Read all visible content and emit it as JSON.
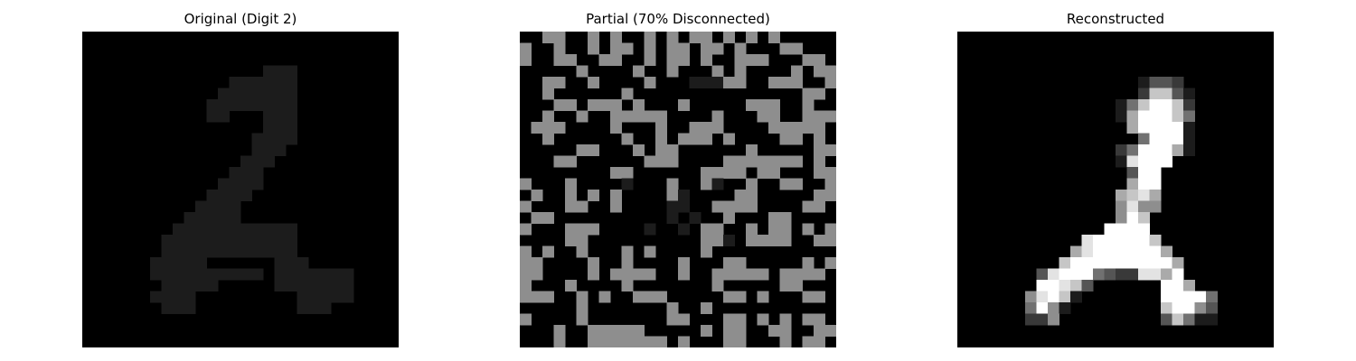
{
  "panels": [
    {
      "title": "Original (Digit 2)",
      "rows": [
        "0000000000000000000000000000",
        "0000000000000000000000000000",
        "0000000000000000000000000000",
        "0000000000000000111000000000",
        "0000000000000111111000000000",
        "0000000000001111111000000000",
        "0000000000011111111000000000",
        "0000000000011000111000000000",
        "0000000000000000111000000000",
        "0000000000000001111000000000",
        "0000000000000001110000000000",
        "0000000000000011100000000000",
        "0000000000000111000000000000",
        "0000000000001111000000000000",
        "0000000000011110000000000000",
        "0000000000111100000000000000",
        "0000000001111100000000000000",
        "0000000011111111111000000000",
        "0000000111111111111000000000",
        "0000000111111111111000000000",
        "0000001111100000011100000000",
        "0000001111111111011111110000",
        "0000000111110000011111110000",
        "0000001111000000000111110000",
        "0000000111000000000111000000",
        "0000000000000000000000000000",
        "0000000000000000000000000000",
        "0000000000000000000000000000"
      ]
    },
    {
      "title": "Partial (70% Disconnected)",
      "rows": [
        "0055005050050505505050500000",
        "5005005055050550550500055000",
        "5005500550050550500555000550",
        "0000050000500500050500005055",
        "0055005000050001115500555005",
        "0050000005000000000000000550",
        "0005505550500050000055500500",
        "0050050055555000050005500555",
        "0555000050005005550000555550",
        "0050000005005055505000055050",
        "0000055000505500000050000055",
        "0005500000055500005555555050",
        "0000000055000000555505500055",
        "5000500001000500510050055005",
        "0500505050000510000550000055",
        "5000550050000110055550000550",
        "0550000000000101005000550000",
        "5000555000010010550050550505",
        "0000550000000000551055550055",
        "5050050005050000500000000000",
        "5500005005000050005500000505",
        "5500005055550050055555055550",
        "5000500005000000050000055000",
        "5550050500555000005505000550",
        "0000050000000500500000000000",
        "5000050000000550005505050550",
        "0005005555500000505500550055",
        "0005005555555050005500050550"
      ]
    },
    {
      "title": "Reconstructed",
      "rows": [
        "0000000000000000000000000000",
        "0000000000000000000000000000",
        "0000000000000000000000000000",
        "0000000000000000000000000000",
        "0000000000000000133200000000",
        "0000000000000000277310000000",
        "0000000000000014799720000000",
        "0000000000000016999740000000",
        "0000000000000006999910000000",
        "0000000000000000499910000000",
        "0000000000000024999610000000",
        "0000000000000018999000000000",
        "0000000000000003990000000000",
        "0000000000000006990000000000",
        "0000000000000067860000000000",
        "0000000000000058550000000000",
        "0000000000000059700000000000",
        "0000000000000999900000000000",
        "0000000000089999970000000000",
        "0000000000689999996000000000",
        "0000000007999999999600000000",
        "0000000389994322886900000000",
        "0000000998730000009960000000",
        "0000005897100000009999400000",
        "0000004951000000007995300000",
        "0000002250000000003741100000",
        "0000000000000000000000000000",
        "0000000000000000000000000000"
      ]
    }
  ],
  "chart_data": [
    {
      "type": "heatmap",
      "title": "Original (Digit 2)",
      "grid_size": [
        28,
        28
      ],
      "colormap": "gray",
      "axes_visible": false
    },
    {
      "type": "heatmap",
      "title": "Partial (70% Disconnected)",
      "grid_size": [
        28,
        28
      ],
      "colormap": "gray",
      "axes_visible": false
    },
    {
      "type": "heatmap",
      "title": "Reconstructed",
      "grid_size": [
        28,
        28
      ],
      "colormap": "gray",
      "axes_visible": false
    }
  ]
}
